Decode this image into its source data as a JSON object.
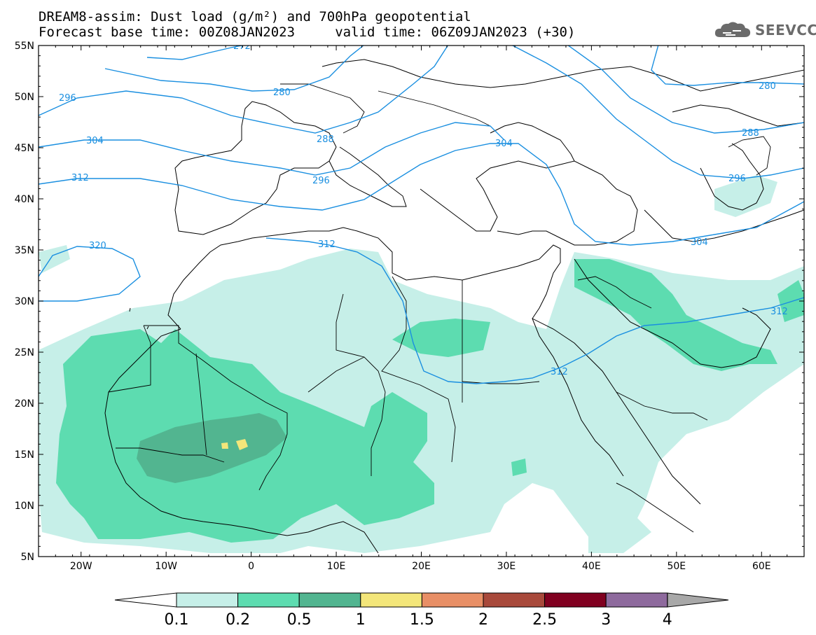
{
  "title_line1": "DREAM8-assim: Dust load (g/m²) and 700hPa geopotential",
  "title_line2": "Forecast base time: 00Z08JAN2023     valid time: 06Z09JAN2023 (+30)",
  "logo": {
    "icon": "cloud-icon",
    "text": "SEEVCCC"
  },
  "colors": {
    "c01": "#c6efe8",
    "c02": "#5ddcb0",
    "c05": "#52b590",
    "c1": "#f3e67a",
    "c15": "#e88f66",
    "c2": "#a8493b",
    "c25": "#800020",
    "c3": "#8e6a9d",
    "c4": "#a8a8a8",
    "contour": "#1a8fe0",
    "coast": "#000000"
  },
  "map": {
    "lon_range": [
      -25,
      65
    ],
    "lat_range": [
      5,
      55
    ],
    "lat_ticks": [
      "55N",
      "50N",
      "45N",
      "40N",
      "35N",
      "30N",
      "25N",
      "20N",
      "15N",
      "10N",
      "5N"
    ],
    "lon_ticks": [
      "20W",
      "10W",
      "0",
      "10E",
      "20E",
      "30E",
      "40E",
      "50E",
      "60E"
    ]
  },
  "contours": [
    {
      "label": "272"
    },
    {
      "label": "280"
    },
    {
      "label": "280"
    },
    {
      "label": "288"
    },
    {
      "label": "288"
    },
    {
      "label": "296"
    },
    {
      "label": "296"
    },
    {
      "label": "296"
    },
    {
      "label": "304"
    },
    {
      "label": "304"
    },
    {
      "label": "304"
    },
    {
      "label": "312"
    },
    {
      "label": "312"
    },
    {
      "label": "312"
    },
    {
      "label": "312"
    },
    {
      "label": "320"
    }
  ],
  "colorbar": {
    "labels": [
      "0.1",
      "0.2",
      "0.5",
      "1",
      "1.5",
      "2",
      "2.5",
      "3",
      "4"
    ]
  }
}
